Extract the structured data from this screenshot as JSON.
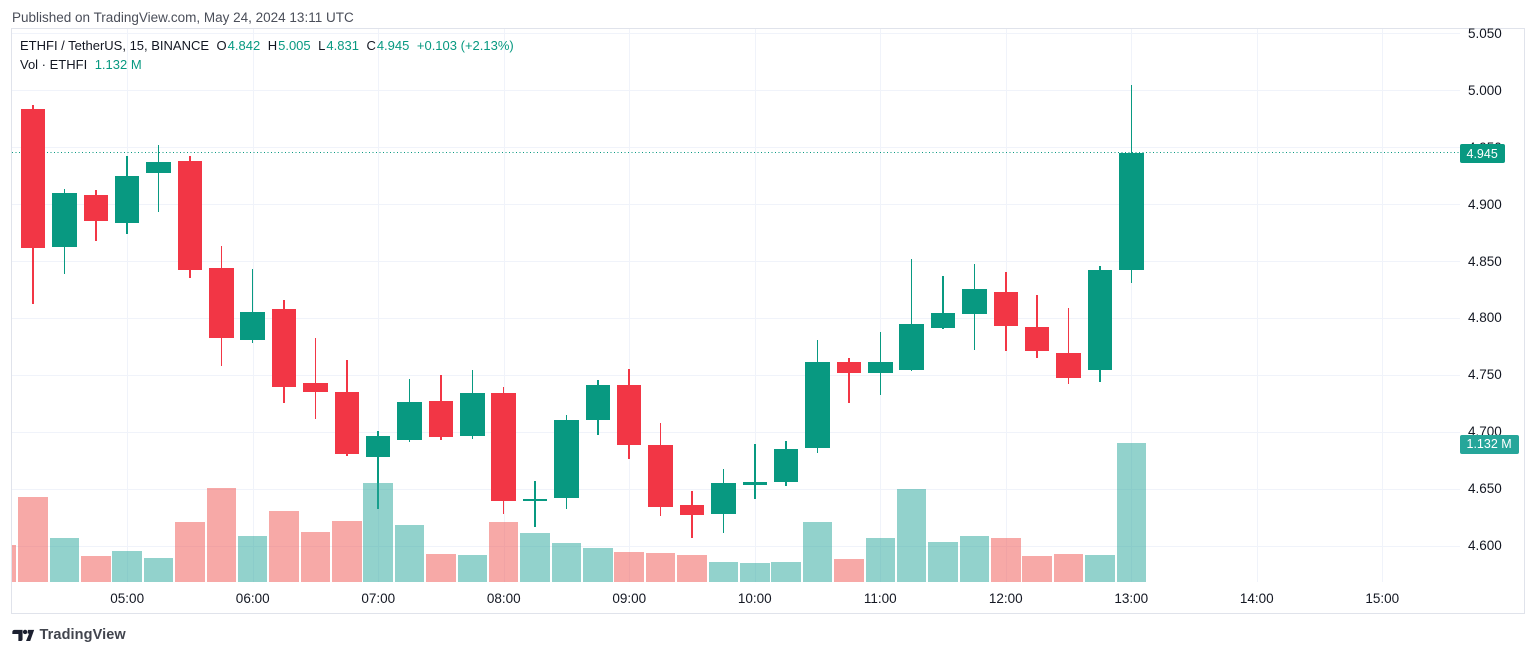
{
  "published_line": "Published on TradingView.com, May 24, 2024 13:11 UTC",
  "legend": {
    "title": "ETHFI / TetherUS, 15, BINANCE",
    "ohlc": [
      {
        "label": "O",
        "value": "4.842"
      },
      {
        "label": "H",
        "value": "5.005"
      },
      {
        "label": "L",
        "value": "4.831"
      },
      {
        "label": "C",
        "value": "4.945"
      }
    ],
    "change": "+0.103 (+2.13%)",
    "volume_label": "Vol · ETHFI",
    "volume_value": "1.132 M"
  },
  "badges": {
    "price": "4.945",
    "volume": "1.132 M"
  },
  "footer_logo_text": "TradingView",
  "colors": {
    "up": "#089981",
    "down": "#f23645",
    "volume_up": "rgba(38,166,154,0.5)",
    "volume_down": "rgba(239,83,80,0.5)",
    "price_badge_bg": "#089981",
    "volume_badge_bg": "#26a69a",
    "grid": "#f0f3fa",
    "border": "#e0e3eb",
    "axis_text": "#131722",
    "background": "#ffffff"
  },
  "axes": {
    "price_ticks": [
      {
        "label": "5.050",
        "price": 5.05
      },
      {
        "label": "5.000",
        "price": 5.0
      },
      {
        "label": "4.950",
        "price": 4.95
      },
      {
        "label": "4.900",
        "price": 4.9
      },
      {
        "label": "4.850",
        "price": 4.85
      },
      {
        "label": "4.800",
        "price": 4.8
      },
      {
        "label": "4.750",
        "price": 4.75
      },
      {
        "label": "4.700",
        "price": 4.7
      },
      {
        "label": "4.650",
        "price": 4.65
      },
      {
        "label": "4.600",
        "price": 4.6
      }
    ],
    "time_ticks": [
      {
        "label": "05:00"
      },
      {
        "label": "06:00"
      },
      {
        "label": "07:00"
      },
      {
        "label": "08:00"
      },
      {
        "label": "09:00"
      },
      {
        "label": "10:00"
      },
      {
        "label": "11:00"
      },
      {
        "label": "12:00"
      },
      {
        "label": "13:00"
      },
      {
        "label": "14:00"
      },
      {
        "label": "15:00"
      }
    ]
  },
  "chart_data": {
    "type": "candlestick",
    "title": "ETHFI / TetherUS, 15, BINANCE",
    "symbol": "ETHFI/TetherUS",
    "interval": "15",
    "exchange": "BINANCE",
    "current_price": 4.945,
    "current_volume_m": 1.132,
    "change": "+0.103 (+2.13%)",
    "ylim": [
      4.575,
      5.055
    ],
    "volume_unit": "millions",
    "legend_note": "first entry is the 04:00 bar only partially visible at the left edge (volume sliver only)",
    "candles": [
      {
        "t": "04:00",
        "o": null,
        "h": null,
        "l": null,
        "c": null,
        "v": 0.302,
        "dir": "down",
        "partial": true
      },
      {
        "t": "04:15",
        "o": 4.984,
        "h": 4.987,
        "l": 4.812,
        "c": 4.861,
        "v": 0.691
      },
      {
        "t": "04:30",
        "o": 4.862,
        "h": 4.913,
        "l": 4.839,
        "c": 4.91,
        "v": 0.363
      },
      {
        "t": "04:45",
        "o": 4.908,
        "h": 4.912,
        "l": 4.868,
        "c": 4.885,
        "v": 0.213
      },
      {
        "t": "05:00",
        "o": 4.883,
        "h": 4.942,
        "l": 4.874,
        "c": 4.925,
        "v": 0.25
      },
      {
        "t": "05:15",
        "o": 4.927,
        "h": 4.952,
        "l": 4.893,
        "c": 4.937,
        "v": 0.199
      },
      {
        "t": "05:30",
        "o": 4.938,
        "h": 4.942,
        "l": 4.835,
        "c": 4.842,
        "v": 0.49
      },
      {
        "t": "05:45",
        "o": 4.844,
        "h": 4.863,
        "l": 4.758,
        "c": 4.782,
        "v": 0.767
      },
      {
        "t": "06:00",
        "o": 4.781,
        "h": 4.843,
        "l": 4.778,
        "c": 4.805,
        "v": 0.379
      },
      {
        "t": "06:15",
        "o": 4.808,
        "h": 4.816,
        "l": 4.725,
        "c": 4.739,
        "v": 0.579
      },
      {
        "t": "06:30",
        "o": 4.743,
        "h": 4.782,
        "l": 4.711,
        "c": 4.735,
        "v": 0.409
      },
      {
        "t": "06:45",
        "o": 4.735,
        "h": 4.763,
        "l": 4.679,
        "c": 4.68,
        "v": 0.501
      },
      {
        "t": "07:00",
        "o": 4.678,
        "h": 4.701,
        "l": 4.632,
        "c": 4.696,
        "v": 0.809
      },
      {
        "t": "07:15",
        "o": 4.693,
        "h": 4.746,
        "l": 4.691,
        "c": 4.726,
        "v": 0.462
      },
      {
        "t": "07:30",
        "o": 4.727,
        "h": 4.75,
        "l": 4.693,
        "c": 4.695,
        "v": 0.23
      },
      {
        "t": "07:45",
        "o": 4.696,
        "h": 4.754,
        "l": 4.694,
        "c": 4.734,
        "v": 0.221
      },
      {
        "t": "08:00",
        "o": 4.734,
        "h": 4.739,
        "l": 4.628,
        "c": 4.639,
        "v": 0.493
      },
      {
        "t": "08:15",
        "o": 4.639,
        "h": 4.657,
        "l": 4.616,
        "c": 4.641,
        "v": 0.4
      },
      {
        "t": "08:30",
        "o": 4.642,
        "h": 4.715,
        "l": 4.632,
        "c": 4.71,
        "v": 0.319
      },
      {
        "t": "08:45",
        "o": 4.71,
        "h": 4.745,
        "l": 4.697,
        "c": 4.741,
        "v": 0.281
      },
      {
        "t": "09:00",
        "o": 4.741,
        "h": 4.755,
        "l": 4.676,
        "c": 4.688,
        "v": 0.246
      },
      {
        "t": "09:15",
        "o": 4.688,
        "h": 4.708,
        "l": 4.626,
        "c": 4.634,
        "v": 0.235
      },
      {
        "t": "09:30",
        "o": 4.636,
        "h": 4.648,
        "l": 4.607,
        "c": 4.627,
        "v": 0.219
      },
      {
        "t": "09:45",
        "o": 4.628,
        "h": 4.667,
        "l": 4.611,
        "c": 4.655,
        "v": 0.163
      },
      {
        "t": "10:00",
        "o": 4.653,
        "h": 4.689,
        "l": 4.641,
        "c": 4.656,
        "v": 0.157
      },
      {
        "t": "10:15",
        "o": 4.656,
        "h": 4.692,
        "l": 4.652,
        "c": 4.685,
        "v": 0.163
      },
      {
        "t": "10:30",
        "o": 4.686,
        "h": 4.781,
        "l": 4.681,
        "c": 4.761,
        "v": 0.489
      },
      {
        "t": "10:45",
        "o": 4.761,
        "h": 4.765,
        "l": 4.725,
        "c": 4.752,
        "v": 0.192
      },
      {
        "t": "11:00",
        "o": 4.752,
        "h": 4.788,
        "l": 4.732,
        "c": 4.761,
        "v": 0.358
      },
      {
        "t": "11:15",
        "o": 4.754,
        "h": 4.852,
        "l": 4.753,
        "c": 4.795,
        "v": 0.758
      },
      {
        "t": "11:30",
        "o": 4.791,
        "h": 4.837,
        "l": 4.79,
        "c": 4.804,
        "v": 0.327
      },
      {
        "t": "11:45",
        "o": 4.803,
        "h": 4.847,
        "l": 4.772,
        "c": 4.825,
        "v": 0.378
      },
      {
        "t": "12:00",
        "o": 4.823,
        "h": 4.84,
        "l": 4.771,
        "c": 4.793,
        "v": 0.36
      },
      {
        "t": "12:15",
        "o": 4.792,
        "h": 4.82,
        "l": 4.765,
        "c": 4.771,
        "v": 0.215
      },
      {
        "t": "12:30",
        "o": 4.769,
        "h": 4.809,
        "l": 4.742,
        "c": 4.747,
        "v": 0.23
      },
      {
        "t": "12:45",
        "o": 4.754,
        "h": 4.846,
        "l": 4.744,
        "c": 4.842,
        "v": 0.219
      },
      {
        "t": "13:00",
        "o": 4.842,
        "h": 5.005,
        "l": 4.831,
        "c": 4.945,
        "v": 1.132
      }
    ]
  }
}
